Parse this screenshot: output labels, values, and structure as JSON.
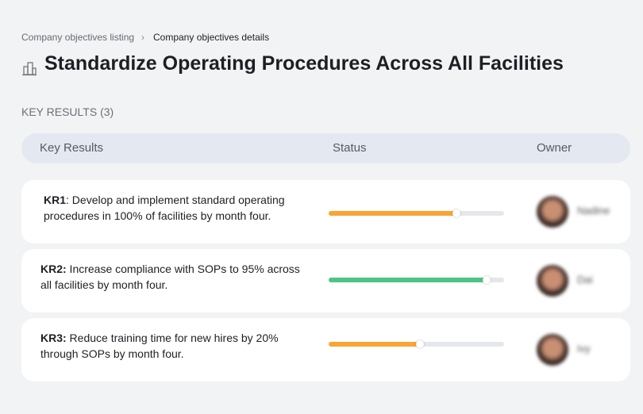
{
  "breadcrumb": {
    "items": [
      "Company objectives listing",
      "Company objectives details"
    ]
  },
  "header": {
    "title": "Standardize Operating Procedures Across All Facilities"
  },
  "key_results": {
    "section_label": "KEY RESULTS (3)",
    "columns": [
      "Key Results",
      "Status",
      "Owner"
    ],
    "rows": [
      {
        "label": "KR1",
        "text": ": Develop and implement standard operating procedures in 100% of facilities by month four.",
        "progress": 73,
        "color": "#f7a535",
        "owner": "Nadine"
      },
      {
        "label": "KR2:",
        "text": " Increase compliance with SOPs to 95% across all facilities by month four.",
        "progress": 90,
        "color": "#4fc383",
        "owner": "Dai"
      },
      {
        "label": "KR3:",
        "text": " Reduce training time for new hires by 20% through SOPs by month four.",
        "progress": 52,
        "color": "#f7a535",
        "owner": "Ivy"
      }
    ]
  }
}
